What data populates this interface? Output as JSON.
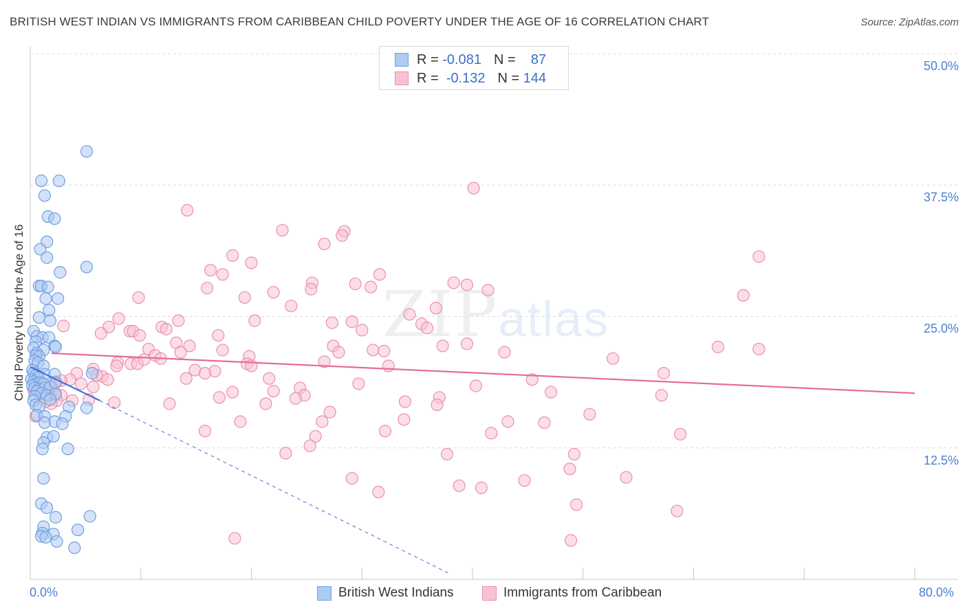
{
  "header": {
    "title": "BRITISH WEST INDIAN VS IMMIGRANTS FROM CARIBBEAN CHILD POVERTY UNDER THE AGE OF 16 CORRELATION CHART",
    "source": "Source: ZipAtlas.com"
  },
  "watermark": {
    "zip": "ZIP",
    "atlas": "atlas"
  },
  "legend": {
    "rows": [
      {
        "r_label": "R =",
        "r_value": "-0.081",
        "n_label": "N =",
        "n_value": "87"
      },
      {
        "r_label": "R =",
        "r_value": "-0.132",
        "n_label": "N =",
        "n_value": "144"
      }
    ]
  },
  "colors": {
    "blue_fill": "#aecbf2",
    "blue_stroke": "#6f9fe0",
    "blue_line": "#3a6fd8",
    "pink_fill": "#f7c3d3",
    "pink_stroke": "#ea8fae",
    "pink_line": "#e66a98",
    "grid": "#dcdcdc",
    "tick_text": "#4a7fd0"
  },
  "chart_data": {
    "type": "scatter",
    "title": "BRITISH WEST INDIAN VS IMMIGRANTS FROM CARIBBEAN CHILD POVERTY UNDER THE AGE OF 16 CORRELATION CHART",
    "xlabel": "",
    "ylabel": "Child Poverty Under the Age of 16",
    "xlim": [
      0,
      80
    ],
    "ylim": [
      0,
      50
    ],
    "x_tick_labels": [
      "0.0%",
      "80.0%"
    ],
    "y_ticks": [
      12.5,
      25.0,
      37.5,
      50.0
    ],
    "y_tick_labels": [
      "12.5%",
      "25.0%",
      "37.5%",
      "50.0%"
    ],
    "grid": true,
    "legend_position": "bottom-center",
    "series": [
      {
        "name": "British West Indians",
        "color": "blue",
        "R": -0.081,
        "N": 87,
        "trend": {
          "x0": 0,
          "y0": 20.2,
          "x1": 6.3,
          "y1": 17.0,
          "dashed_to_x": 38,
          "dashed_to_y": 0.5
        },
        "points": [
          [
            5.1,
            40.7
          ],
          [
            1.0,
            37.9
          ],
          [
            2.6,
            37.9
          ],
          [
            1.3,
            36.5
          ],
          [
            1.6,
            34.5
          ],
          [
            2.2,
            34.3
          ],
          [
            1.5,
            32.1
          ],
          [
            0.9,
            31.4
          ],
          [
            1.5,
            30.6
          ],
          [
            5.1,
            29.7
          ],
          [
            2.7,
            29.2
          ],
          [
            0.8,
            27.9
          ],
          [
            1.0,
            27.9
          ],
          [
            1.6,
            27.8
          ],
          [
            1.4,
            26.7
          ],
          [
            2.5,
            26.7
          ],
          [
            1.7,
            25.6
          ],
          [
            0.8,
            24.9
          ],
          [
            1.8,
            24.6
          ],
          [
            0.3,
            23.6
          ],
          [
            0.6,
            23.1
          ],
          [
            1.1,
            23.0
          ],
          [
            1.7,
            23.0
          ],
          [
            0.5,
            22.6
          ],
          [
            2.2,
            22.2
          ],
          [
            2.3,
            22.1
          ],
          [
            0.3,
            22.0
          ],
          [
            1.2,
            21.8
          ],
          [
            0.6,
            21.5
          ],
          [
            0.5,
            21.3
          ],
          [
            0.8,
            21.2
          ],
          [
            0.4,
            20.8
          ],
          [
            0.7,
            20.6
          ],
          [
            1.2,
            20.3
          ],
          [
            0.2,
            19.9
          ],
          [
            0.3,
            19.6
          ],
          [
            0.5,
            19.4
          ],
          [
            1.3,
            19.5
          ],
          [
            2.2,
            19.5
          ],
          [
            0.7,
            19.2
          ],
          [
            5.6,
            19.6
          ],
          [
            0.1,
            19.0
          ],
          [
            0.3,
            18.8
          ],
          [
            0.5,
            18.6
          ],
          [
            0.9,
            18.7
          ],
          [
            1.2,
            18.6
          ],
          [
            0.2,
            18.4
          ],
          [
            0.4,
            18.2
          ],
          [
            0.8,
            18.1
          ],
          [
            1.3,
            18.2
          ],
          [
            1.8,
            18.3
          ],
          [
            0.6,
            17.9
          ],
          [
            1.0,
            17.7
          ],
          [
            1.5,
            17.5
          ],
          [
            2.3,
            17.6
          ],
          [
            0.4,
            17.4
          ],
          [
            1.8,
            17.1
          ],
          [
            0.3,
            17.0
          ],
          [
            0.5,
            16.6
          ],
          [
            0.8,
            16.4
          ],
          [
            3.5,
            16.4
          ],
          [
            5.1,
            16.3
          ],
          [
            0.6,
            15.6
          ],
          [
            1.3,
            15.5
          ],
          [
            3.2,
            15.5
          ],
          [
            2.2,
            15.0
          ],
          [
            1.3,
            14.9
          ],
          [
            2.9,
            14.8
          ],
          [
            1.5,
            13.5
          ],
          [
            2.1,
            13.6
          ],
          [
            1.2,
            13.0
          ],
          [
            1.1,
            12.4
          ],
          [
            3.4,
            12.4
          ],
          [
            1.2,
            9.6
          ],
          [
            1.0,
            7.2
          ],
          [
            1.5,
            6.8
          ],
          [
            2.3,
            5.9
          ],
          [
            5.4,
            6.0
          ],
          [
            1.2,
            5.0
          ],
          [
            1.1,
            4.4
          ],
          [
            2.1,
            4.3
          ],
          [
            4.3,
            4.7
          ],
          [
            1.0,
            4.1
          ],
          [
            1.4,
            4.0
          ],
          [
            2.4,
            3.6
          ],
          [
            4.0,
            3.0
          ],
          [
            2.3,
            18.7
          ]
        ]
      },
      {
        "name": "Immigrants from Caribbean",
        "color": "pink",
        "R": -0.132,
        "N": 144,
        "trend": {
          "x0": 1.9,
          "y0": 21.5,
          "x1": 80,
          "y1": 17.7
        },
        "points": [
          [
            40.1,
            37.2
          ],
          [
            14.2,
            35.1
          ],
          [
            22.8,
            33.2
          ],
          [
            28.4,
            33.1
          ],
          [
            28.2,
            32.7
          ],
          [
            26.6,
            31.9
          ],
          [
            18.3,
            30.8
          ],
          [
            65.9,
            30.7
          ],
          [
            20.0,
            30.1
          ],
          [
            16.3,
            29.4
          ],
          [
            17.4,
            29.0
          ],
          [
            31.6,
            29.0
          ],
          [
            25.5,
            28.2
          ],
          [
            38.3,
            28.2
          ],
          [
            29.4,
            28.1
          ],
          [
            39.5,
            28.0
          ],
          [
            16.0,
            27.7
          ],
          [
            25.4,
            27.6
          ],
          [
            30.8,
            27.8
          ],
          [
            41.4,
            27.5
          ],
          [
            22.0,
            27.3
          ],
          [
            64.5,
            27.0
          ],
          [
            9.8,
            26.8
          ],
          [
            19.4,
            26.8
          ],
          [
            23.6,
            26.0
          ],
          [
            36.7,
            25.8
          ],
          [
            34.3,
            25.2
          ],
          [
            8.0,
            24.8
          ],
          [
            13.4,
            24.6
          ],
          [
            20.3,
            24.6
          ],
          [
            27.3,
            24.4
          ],
          [
            29.1,
            24.5
          ],
          [
            35.4,
            24.3
          ],
          [
            3.0,
            24.1
          ],
          [
            7.1,
            24.0
          ],
          [
            11.9,
            24.0
          ],
          [
            12.3,
            23.8
          ],
          [
            9.0,
            23.6
          ],
          [
            9.3,
            23.6
          ],
          [
            30.0,
            23.7
          ],
          [
            35.9,
            23.9
          ],
          [
            6.4,
            23.4
          ],
          [
            9.9,
            23.2
          ],
          [
            17.0,
            23.2
          ],
          [
            13.2,
            22.5
          ],
          [
            14.4,
            22.2
          ],
          [
            27.4,
            22.2
          ],
          [
            37.3,
            22.2
          ],
          [
            39.5,
            22.4
          ],
          [
            62.2,
            22.1
          ],
          [
            65.9,
            21.9
          ],
          [
            10.7,
            21.9
          ],
          [
            17.4,
            21.8
          ],
          [
            27.9,
            21.6
          ],
          [
            31.0,
            21.8
          ],
          [
            32.0,
            21.7
          ],
          [
            42.9,
            21.6
          ],
          [
            13.6,
            21.6
          ],
          [
            11.3,
            21.3
          ],
          [
            11.8,
            21.0
          ],
          [
            19.8,
            21.2
          ],
          [
            52.7,
            21.0
          ],
          [
            7.9,
            20.6
          ],
          [
            9.1,
            20.5
          ],
          [
            9.7,
            20.5
          ],
          [
            19.6,
            20.5
          ],
          [
            26.6,
            20.7
          ],
          [
            7.8,
            20.3
          ],
          [
            20.0,
            20.3
          ],
          [
            32.4,
            20.3
          ],
          [
            5.7,
            20.0
          ],
          [
            14.9,
            19.9
          ],
          [
            16.7,
            19.8
          ],
          [
            15.8,
            19.6
          ],
          [
            4.2,
            19.6
          ],
          [
            57.3,
            19.6
          ],
          [
            6.5,
            19.3
          ],
          [
            3.6,
            19.0
          ],
          [
            7.0,
            19.0
          ],
          [
            14.1,
            19.1
          ],
          [
            21.6,
            19.1
          ],
          [
            45.4,
            19.0
          ],
          [
            2.3,
            18.8
          ],
          [
            29.7,
            18.6
          ],
          [
            2.0,
            18.2
          ],
          [
            5.7,
            18.3
          ],
          [
            40.3,
            18.4
          ],
          [
            24.4,
            18.2
          ],
          [
            22.0,
            17.9
          ],
          [
            18.3,
            17.8
          ],
          [
            47.1,
            17.8
          ],
          [
            57.1,
            17.5
          ],
          [
            2.8,
            17.5
          ],
          [
            1.7,
            17.5
          ],
          [
            24.8,
            17.5
          ],
          [
            17.1,
            17.3
          ],
          [
            37.0,
            17.3
          ],
          [
            1.3,
            17.2
          ],
          [
            2.4,
            17.0
          ],
          [
            3.8,
            17.0
          ],
          [
            5.3,
            17.1
          ],
          [
            24.0,
            17.2
          ],
          [
            33.9,
            16.9
          ],
          [
            7.6,
            16.8
          ],
          [
            12.6,
            16.7
          ],
          [
            21.3,
            16.7
          ],
          [
            1.9,
            16.7
          ],
          [
            36.8,
            16.6
          ],
          [
            27.1,
            15.9
          ],
          [
            50.6,
            15.7
          ],
          [
            33.8,
            15.2
          ],
          [
            19.0,
            15.0
          ],
          [
            26.4,
            15.0
          ],
          [
            43.2,
            15.0
          ],
          [
            46.5,
            14.9
          ],
          [
            15.8,
            14.1
          ],
          [
            32.1,
            14.1
          ],
          [
            25.8,
            13.6
          ],
          [
            41.7,
            13.9
          ],
          [
            58.8,
            13.8
          ],
          [
            25.3,
            12.7
          ],
          [
            23.1,
            12.0
          ],
          [
            37.7,
            11.9
          ],
          [
            49.2,
            11.9
          ],
          [
            48.8,
            10.5
          ],
          [
            53.9,
            9.7
          ],
          [
            29.1,
            9.6
          ],
          [
            44.7,
            9.4
          ],
          [
            38.8,
            8.9
          ],
          [
            40.8,
            8.7
          ],
          [
            31.5,
            8.3
          ],
          [
            49.4,
            7.1
          ],
          [
            58.5,
            6.5
          ],
          [
            18.5,
            3.9
          ],
          [
            48.9,
            3.7
          ],
          [
            1.9,
            18.3
          ],
          [
            2.2,
            17.7
          ],
          [
            1.4,
            16.9
          ],
          [
            0.5,
            15.5
          ],
          [
            0.3,
            18.0
          ],
          [
            2.8,
            18.9
          ],
          [
            6.0,
            19.4
          ],
          [
            4.6,
            18.6
          ],
          [
            10.3,
            20.9
          ]
        ]
      }
    ]
  },
  "bottom_legend": {
    "items": [
      {
        "label": "British West Indians"
      },
      {
        "label": "Immigrants from Caribbean"
      }
    ]
  }
}
